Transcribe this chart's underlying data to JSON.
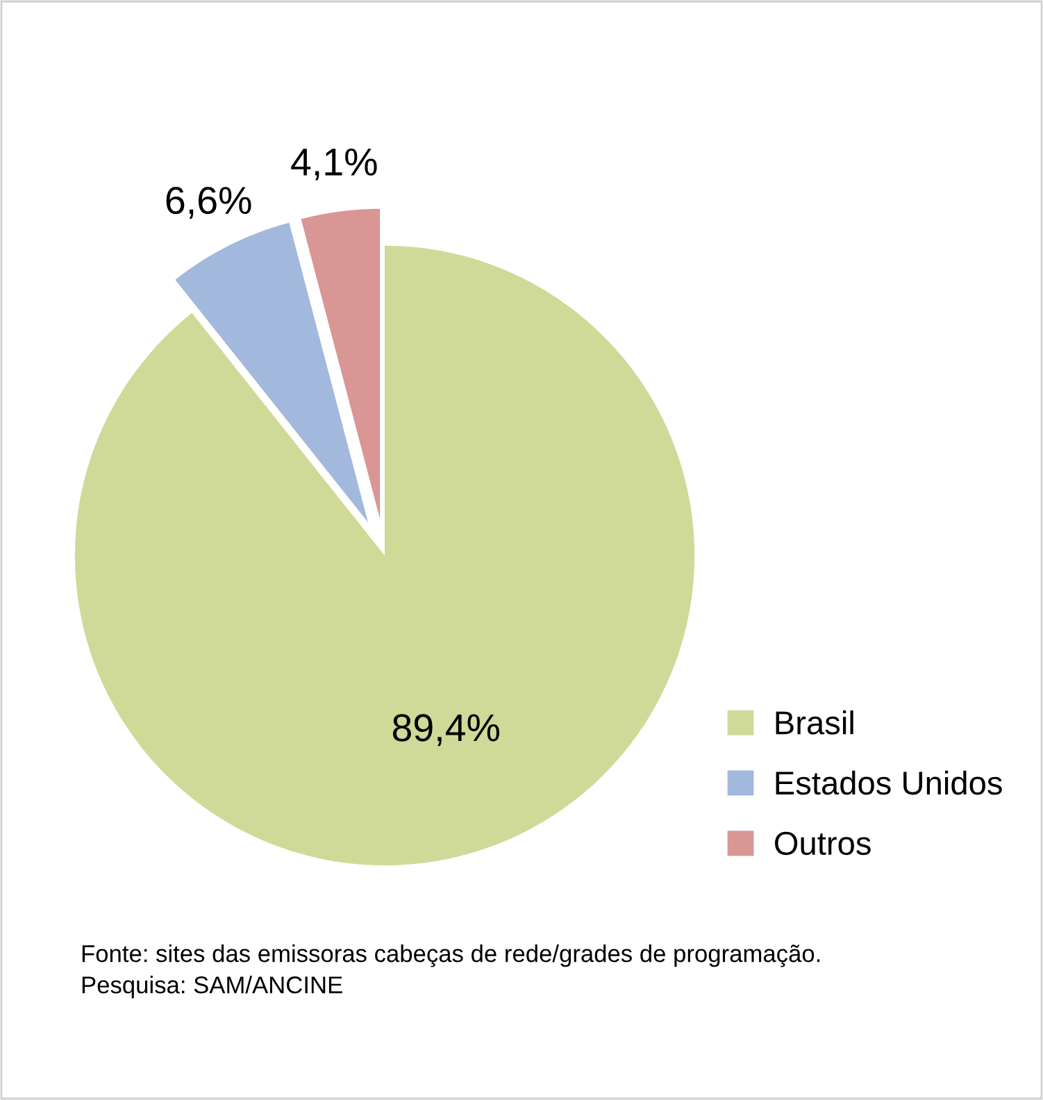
{
  "chart_data": {
    "type": "pie",
    "categories": [
      "Brasil",
      "Estados Unidos",
      "Outros"
    ],
    "values": [
      89.4,
      6.6,
      4.1
    ],
    "value_labels": [
      "89,4%",
      "6,6%",
      "4,1%"
    ],
    "colors": [
      "#cfda98",
      "#a3b8dd",
      "#d99694"
    ],
    "legend": "bottom right",
    "annotations": [
      "Fonte: sites das emissoras cabeças de rede/grades de programação.\nPesquisa: SAM/ANCINE"
    ]
  }
}
